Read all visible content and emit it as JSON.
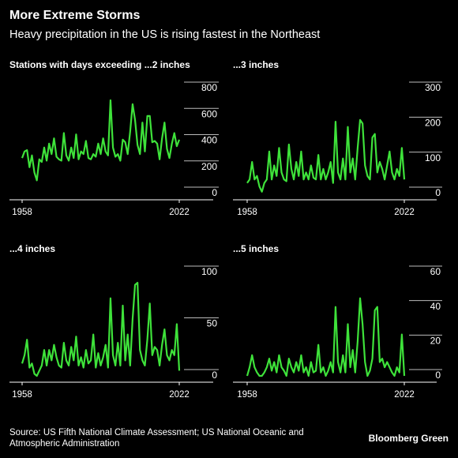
{
  "title": "More Extreme Storms",
  "subtitle": "Heavy precipitation in the US is rising fastest in the Northeast",
  "source": "Source: US Fifth National Climate Assessment; US National Oceanic and Atmospheric Administration",
  "brand": "Bloomberg Green",
  "chart_data": [
    {
      "type": "line",
      "title": "Stations with days exceeding ...2 inches",
      "color": "#3ee23a",
      "x": [
        1958,
        1959,
        1960,
        1961,
        1962,
        1963,
        1964,
        1965,
        1966,
        1967,
        1968,
        1969,
        1970,
        1971,
        1972,
        1973,
        1974,
        1975,
        1976,
        1977,
        1978,
        1979,
        1980,
        1981,
        1982,
        1983,
        1984,
        1985,
        1986,
        1987,
        1988,
        1989,
        1990,
        1991,
        1992,
        1993,
        1994,
        1995,
        1996,
        1997,
        1998,
        1999,
        2000,
        2001,
        2002,
        2003,
        2004,
        2005,
        2006,
        2007,
        2008,
        2009,
        2010,
        2011,
        2012,
        2013,
        2014,
        2015,
        2016,
        2017,
        2018,
        2019,
        2020,
        2021,
        2022
      ],
      "values": [
        270,
        320,
        330,
        200,
        290,
        160,
        100,
        260,
        240,
        350,
        250,
        380,
        300,
        420,
        280,
        260,
        250,
        460,
        290,
        250,
        350,
        270,
        450,
        260,
        320,
        300,
        400,
        270,
        260,
        300,
        280,
        380,
        300,
        420,
        320,
        290,
        710,
        350,
        280,
        300,
        250,
        410,
        390,
        300,
        470,
        680,
        560,
        370,
        300,
        540,
        320,
        590,
        590,
        390,
        400,
        380,
        260,
        420,
        540,
        340,
        270,
        380,
        460,
        360,
        410
      ],
      "xlim": [
        1958,
        2022
      ],
      "xticks": [
        1958,
        2022
      ],
      "ylim": [
        0,
        800
      ],
      "yticks": [
        0,
        200,
        400,
        600,
        800
      ]
    },
    {
      "type": "line",
      "title": "...3 inches",
      "color": "#3ee23a",
      "x": [
        1958,
        1959,
        1960,
        1961,
        1962,
        1963,
        1964,
        1965,
        1966,
        1967,
        1968,
        1969,
        1970,
        1971,
        1972,
        1973,
        1974,
        1975,
        1976,
        1977,
        1978,
        1979,
        1980,
        1981,
        1982,
        1983,
        1984,
        1985,
        1986,
        1987,
        1988,
        1989,
        1990,
        1991,
        1992,
        1993,
        1994,
        1995,
        1996,
        1997,
        1998,
        1999,
        2000,
        2001,
        2002,
        2003,
        2004,
        2005,
        2006,
        2007,
        2008,
        2009,
        2010,
        2011,
        2012,
        2013,
        2014,
        2015,
        2016,
        2017,
        2018,
        2019,
        2020,
        2021,
        2022
      ],
      "values": [
        30,
        40,
        90,
        40,
        50,
        20,
        5,
        30,
        40,
        120,
        40,
        80,
        50,
        130,
        60,
        40,
        35,
        140,
        70,
        40,
        90,
        50,
        120,
        40,
        60,
        40,
        80,
        45,
        40,
        110,
        40,
        70,
        40,
        60,
        90,
        30,
        205,
        60,
        40,
        100,
        40,
        190,
        60,
        100,
        40,
        130,
        210,
        200,
        80,
        50,
        40,
        160,
        170,
        60,
        90,
        70,
        40,
        80,
        120,
        60,
        40,
        70,
        50,
        130,
        40
      ],
      "xlim": [
        1958,
        2022
      ],
      "xticks": [
        1958,
        2022
      ],
      "ylim": [
        0,
        300
      ],
      "yticks": [
        0,
        100,
        200,
        300
      ]
    },
    {
      "type": "line",
      "title": "...4 inches",
      "color": "#3ee23a",
      "x": [
        1958,
        1959,
        1960,
        1961,
        1962,
        1963,
        1964,
        1965,
        1966,
        1967,
        1968,
        1969,
        1970,
        1971,
        1972,
        1973,
        1974,
        1975,
        1976,
        1977,
        1978,
        1979,
        1980,
        1981,
        1982,
        1983,
        1984,
        1985,
        1986,
        1987,
        1988,
        1989,
        1990,
        1991,
        1992,
        1993,
        1994,
        1995,
        1996,
        1997,
        1998,
        1999,
        2000,
        2001,
        2002,
        2003,
        2004,
        2005,
        2006,
        2007,
        2008,
        2009,
        2010,
        2011,
        2012,
        2013,
        2014,
        2015,
        2016,
        2017,
        2018,
        2019,
        2020,
        2021,
        2022
      ],
      "values": [
        12,
        20,
        35,
        8,
        12,
        2,
        0,
        5,
        10,
        25,
        10,
        25,
        15,
        30,
        18,
        10,
        8,
        32,
        15,
        10,
        28,
        15,
        38,
        10,
        18,
        8,
        25,
        12,
        15,
        40,
        8,
        22,
        10,
        18,
        30,
        8,
        75,
        20,
        10,
        32,
        10,
        68,
        15,
        40,
        10,
        55,
        88,
        90,
        25,
        15,
        10,
        35,
        70,
        20,
        28,
        25,
        10,
        30,
        45,
        20,
        15,
        25,
        20,
        50,
        5
      ],
      "xlim": [
        1958,
        2022
      ],
      "xticks": [
        1958,
        2022
      ],
      "ylim": [
        0,
        100
      ],
      "yticks": [
        0,
        50,
        100
      ]
    },
    {
      "type": "line",
      "title": "...5 inches",
      "color": "#3ee23a",
      "x": [
        1958,
        1959,
        1960,
        1961,
        1962,
        1963,
        1964,
        1965,
        1966,
        1967,
        1968,
        1969,
        1970,
        1971,
        1972,
        1973,
        1974,
        1975,
        1976,
        1977,
        1978,
        1979,
        1980,
        1981,
        1982,
        1983,
        1984,
        1985,
        1986,
        1987,
        1988,
        1989,
        1990,
        1991,
        1992,
        1993,
        1994,
        1995,
        1996,
        1997,
        1998,
        1999,
        2000,
        2001,
        2002,
        2003,
        2004,
        2005,
        2006,
        2007,
        2008,
        2009,
        2010,
        2011,
        2012,
        2013,
        2014,
        2015,
        2016,
        2017,
        2018,
        2019,
        2020,
        2021,
        2022
      ],
      "values": [
        0,
        5,
        12,
        5,
        2,
        0,
        0,
        2,
        5,
        10,
        3,
        8,
        2,
        12,
        5,
        3,
        0,
        10,
        5,
        2,
        8,
        3,
        12,
        2,
        5,
        0,
        8,
        2,
        3,
        18,
        2,
        5,
        0,
        3,
        8,
        2,
        40,
        8,
        2,
        12,
        2,
        30,
        5,
        15,
        2,
        20,
        45,
        30,
        8,
        0,
        3,
        10,
        38,
        40,
        8,
        10,
        5,
        8,
        5,
        2,
        0,
        5,
        2,
        24,
        0
      ],
      "xlim": [
        1958,
        2022
      ],
      "xticks": [
        1958,
        2022
      ],
      "ylim": [
        0,
        60
      ],
      "yticks": [
        0,
        20,
        40,
        60
      ]
    }
  ]
}
